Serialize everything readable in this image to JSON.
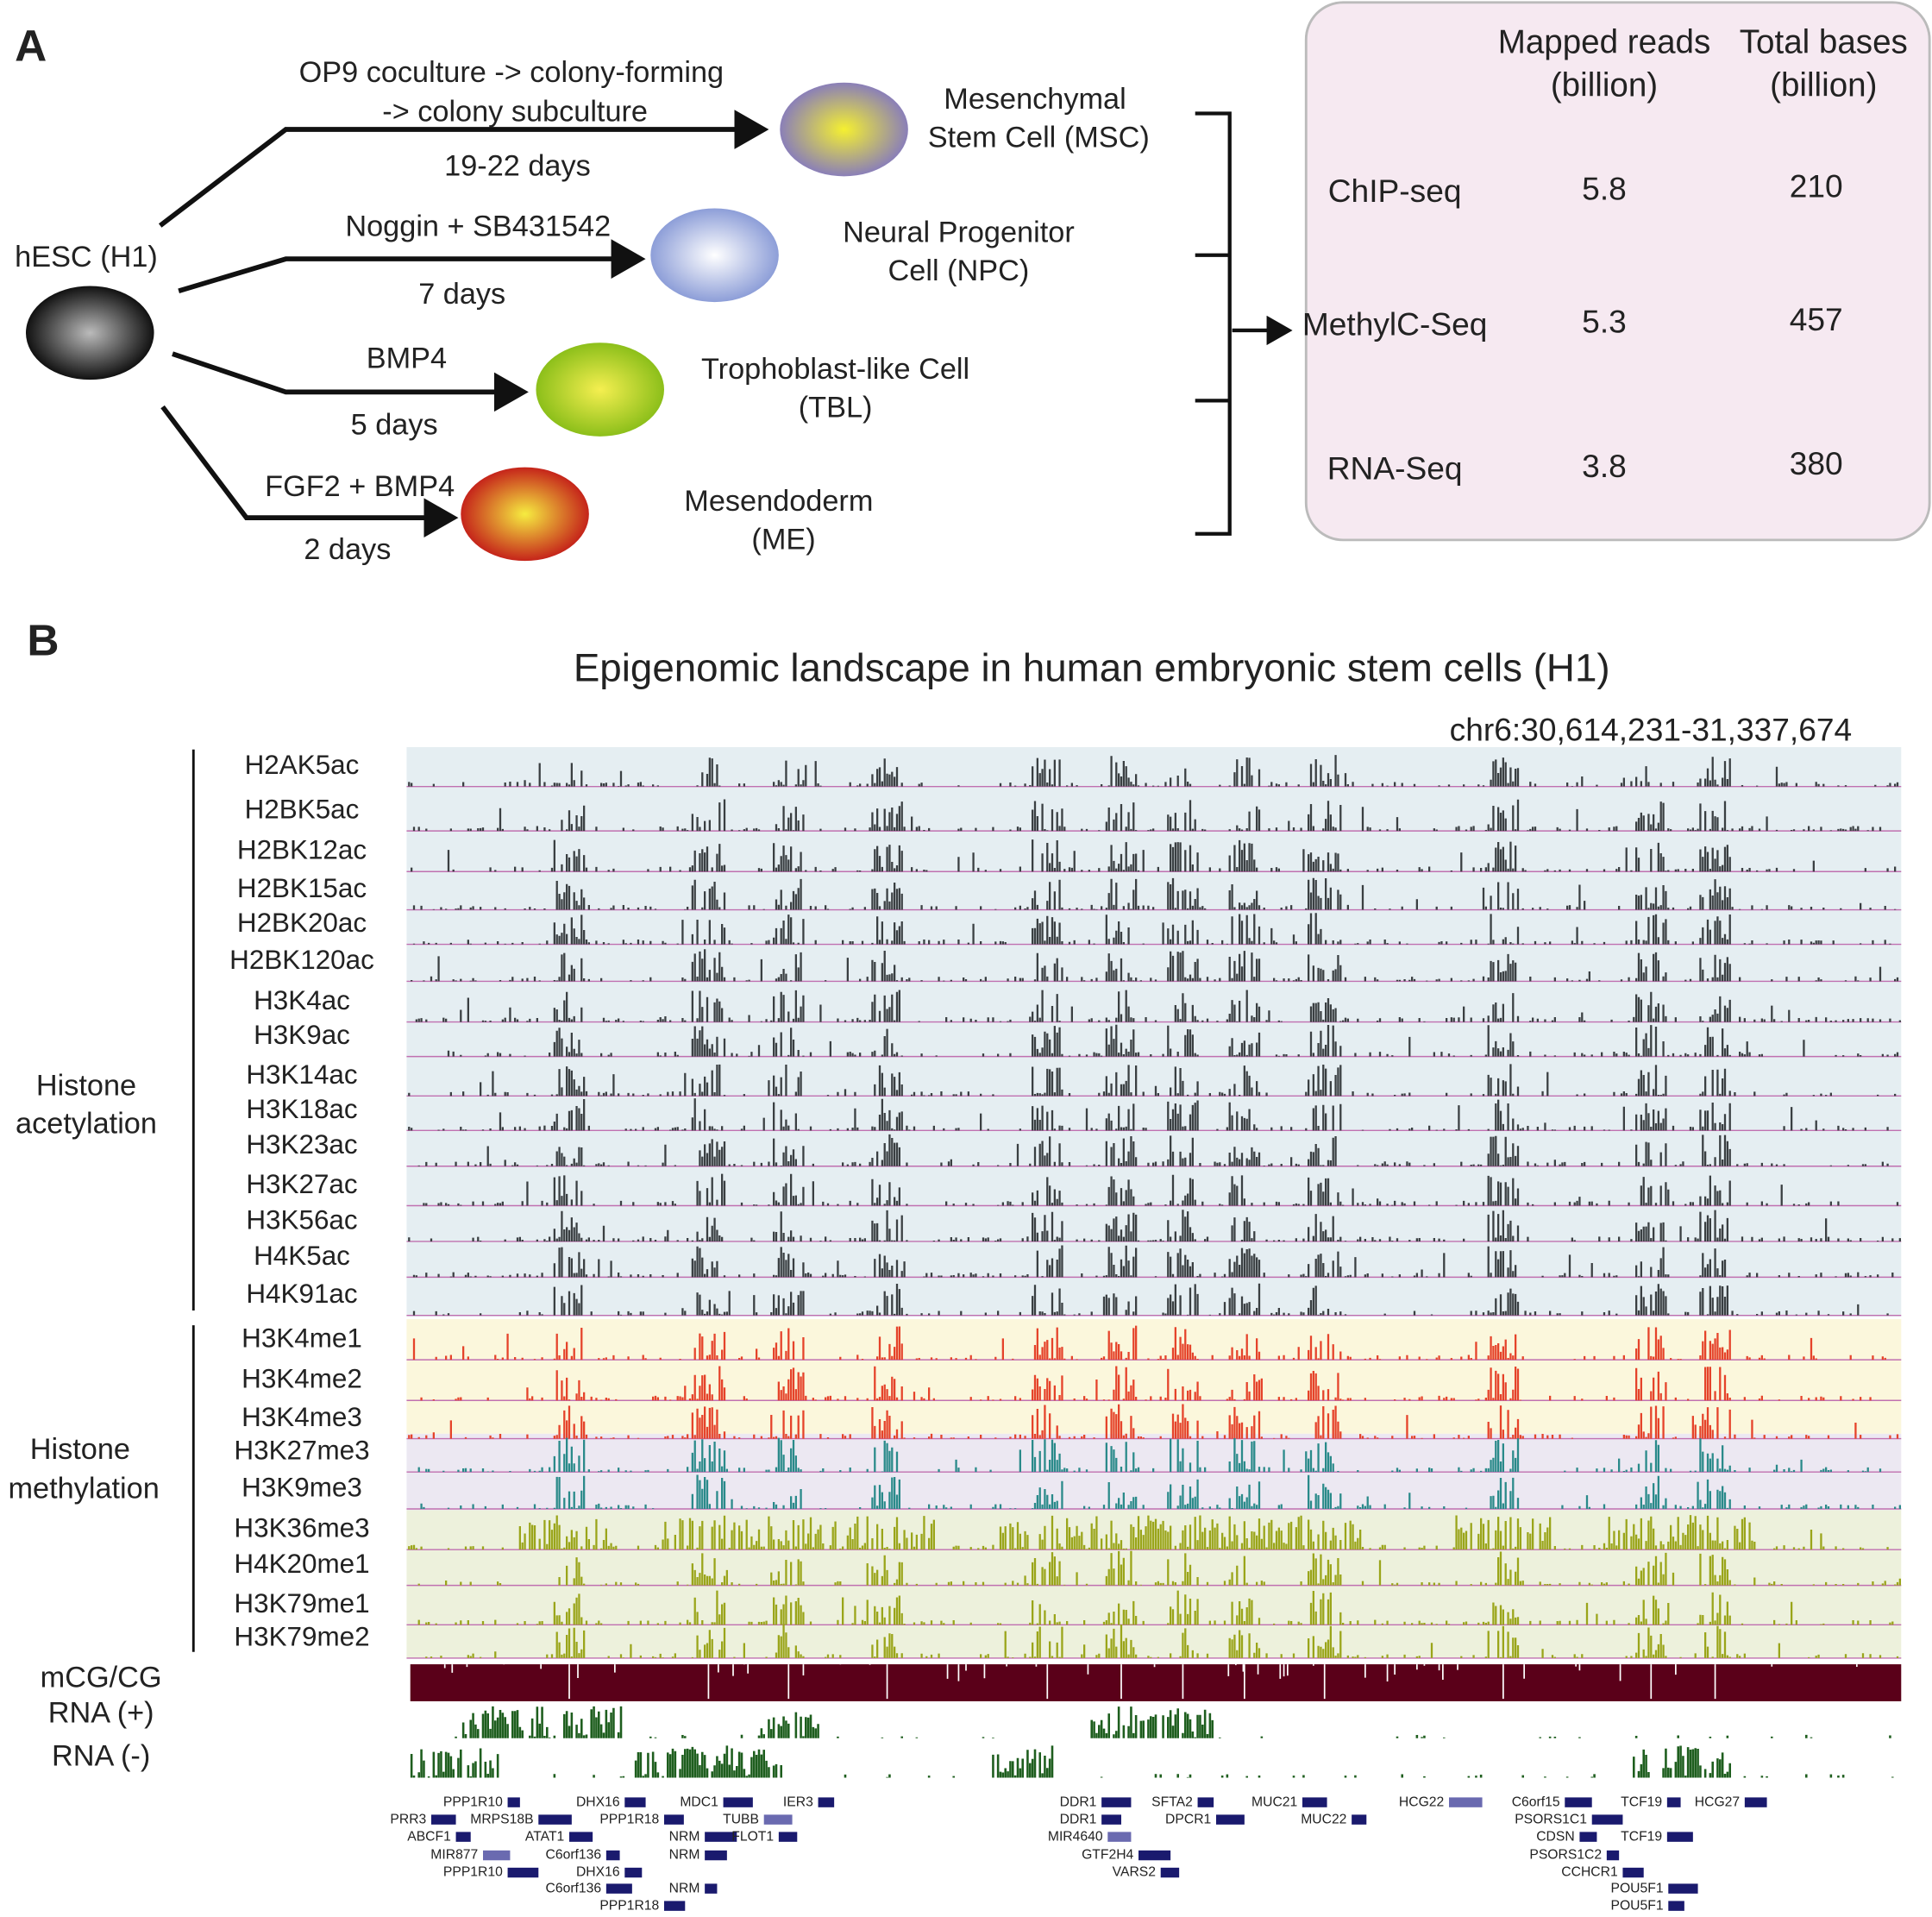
{
  "panel_a": {
    "label": "A",
    "source": "hESC (H1)",
    "paths": [
      {
        "condition": [
          "OP9 coculture -> colony-forming",
          "-> colony subculture"
        ],
        "duration": "19-22 days",
        "cell": [
          "Mesenchymal",
          "Stem Cell (MSC)"
        ]
      },
      {
        "condition": [
          "Noggin + SB431542"
        ],
        "duration": "7 days",
        "cell": [
          "Neural Progenitor",
          "Cell (NPC)"
        ]
      },
      {
        "condition": [
          "BMP4"
        ],
        "duration": "5 days",
        "cell": [
          "Trophoblast-like Cell",
          "(TBL)"
        ]
      },
      {
        "condition": [
          "FGF2 + BMP4"
        ],
        "duration": "2 days",
        "cell": [
          "Mesendoderm",
          "(ME)"
        ]
      }
    ],
    "table": {
      "columns": [
        [
          "Mapped reads",
          "(billion)"
        ],
        [
          "Total bases",
          "(billion)"
        ]
      ],
      "rows": [
        [
          "ChIP-seq",
          5.8,
          210
        ],
        [
          "MethylC-Seq",
          5.3,
          457
        ],
        [
          "RNA-Seq",
          3.8,
          380
        ]
      ]
    }
  },
  "panel_b": {
    "label": "B",
    "title": "Epigenomic landscape in human embryonic stem cells (H1)",
    "region": "chr6:30,614,231-31,337,674",
    "groups": [
      [
        "Histone",
        "acetylation"
      ],
      [
        "Histone",
        "methylation"
      ]
    ],
    "tracks": [
      "H2AK5ac",
      "H2BK5ac",
      "H2BK12ac",
      "H2BK15ac",
      "H2BK20ac",
      "H2BK120ac",
      "H3K4ac",
      "H3K9ac",
      "H3K14ac",
      "H3K18ac",
      "H3K23ac",
      "H3K27ac",
      "H3K56ac",
      "H4K5ac",
      "H4K91ac",
      "H3K4me1",
      "H3K4me2",
      "H3K4me3",
      "H3K27me3",
      "H3K9me3",
      "H3K36me3",
      "H4K20me1",
      "H3K79me1",
      "H3K79me2"
    ],
    "other_tracks": [
      "mCG/CG",
      "RNA (+)",
      "RNA (-)"
    ],
    "genes": [
      "PPP1R10",
      "DHX16",
      "MDC1",
      "IER3",
      "PRR3",
      "MRPS18B",
      "PPP1R18",
      "TUBB",
      "ABCF1",
      "ATAT1",
      "NRM",
      "FLOT1",
      "MIR877",
      "C6orf136",
      "NRM",
      "PPP1R10",
      "DHX16",
      "C6orf136",
      "NRM",
      "PPP1R18",
      "DDR1",
      "SFTA2",
      "MUC21",
      "HCG22",
      "DDR1",
      "DPCR1",
      "MUC22",
      "MIR4640",
      "GTF2H4",
      "VARS2",
      "C6orf15",
      "TCF19",
      "HCG27",
      "PSORS1C1",
      "CDSN",
      "TCF19",
      "PSORS1C2",
      "CCHCR1",
      "POU5F1",
      "POU5F1"
    ]
  }
}
